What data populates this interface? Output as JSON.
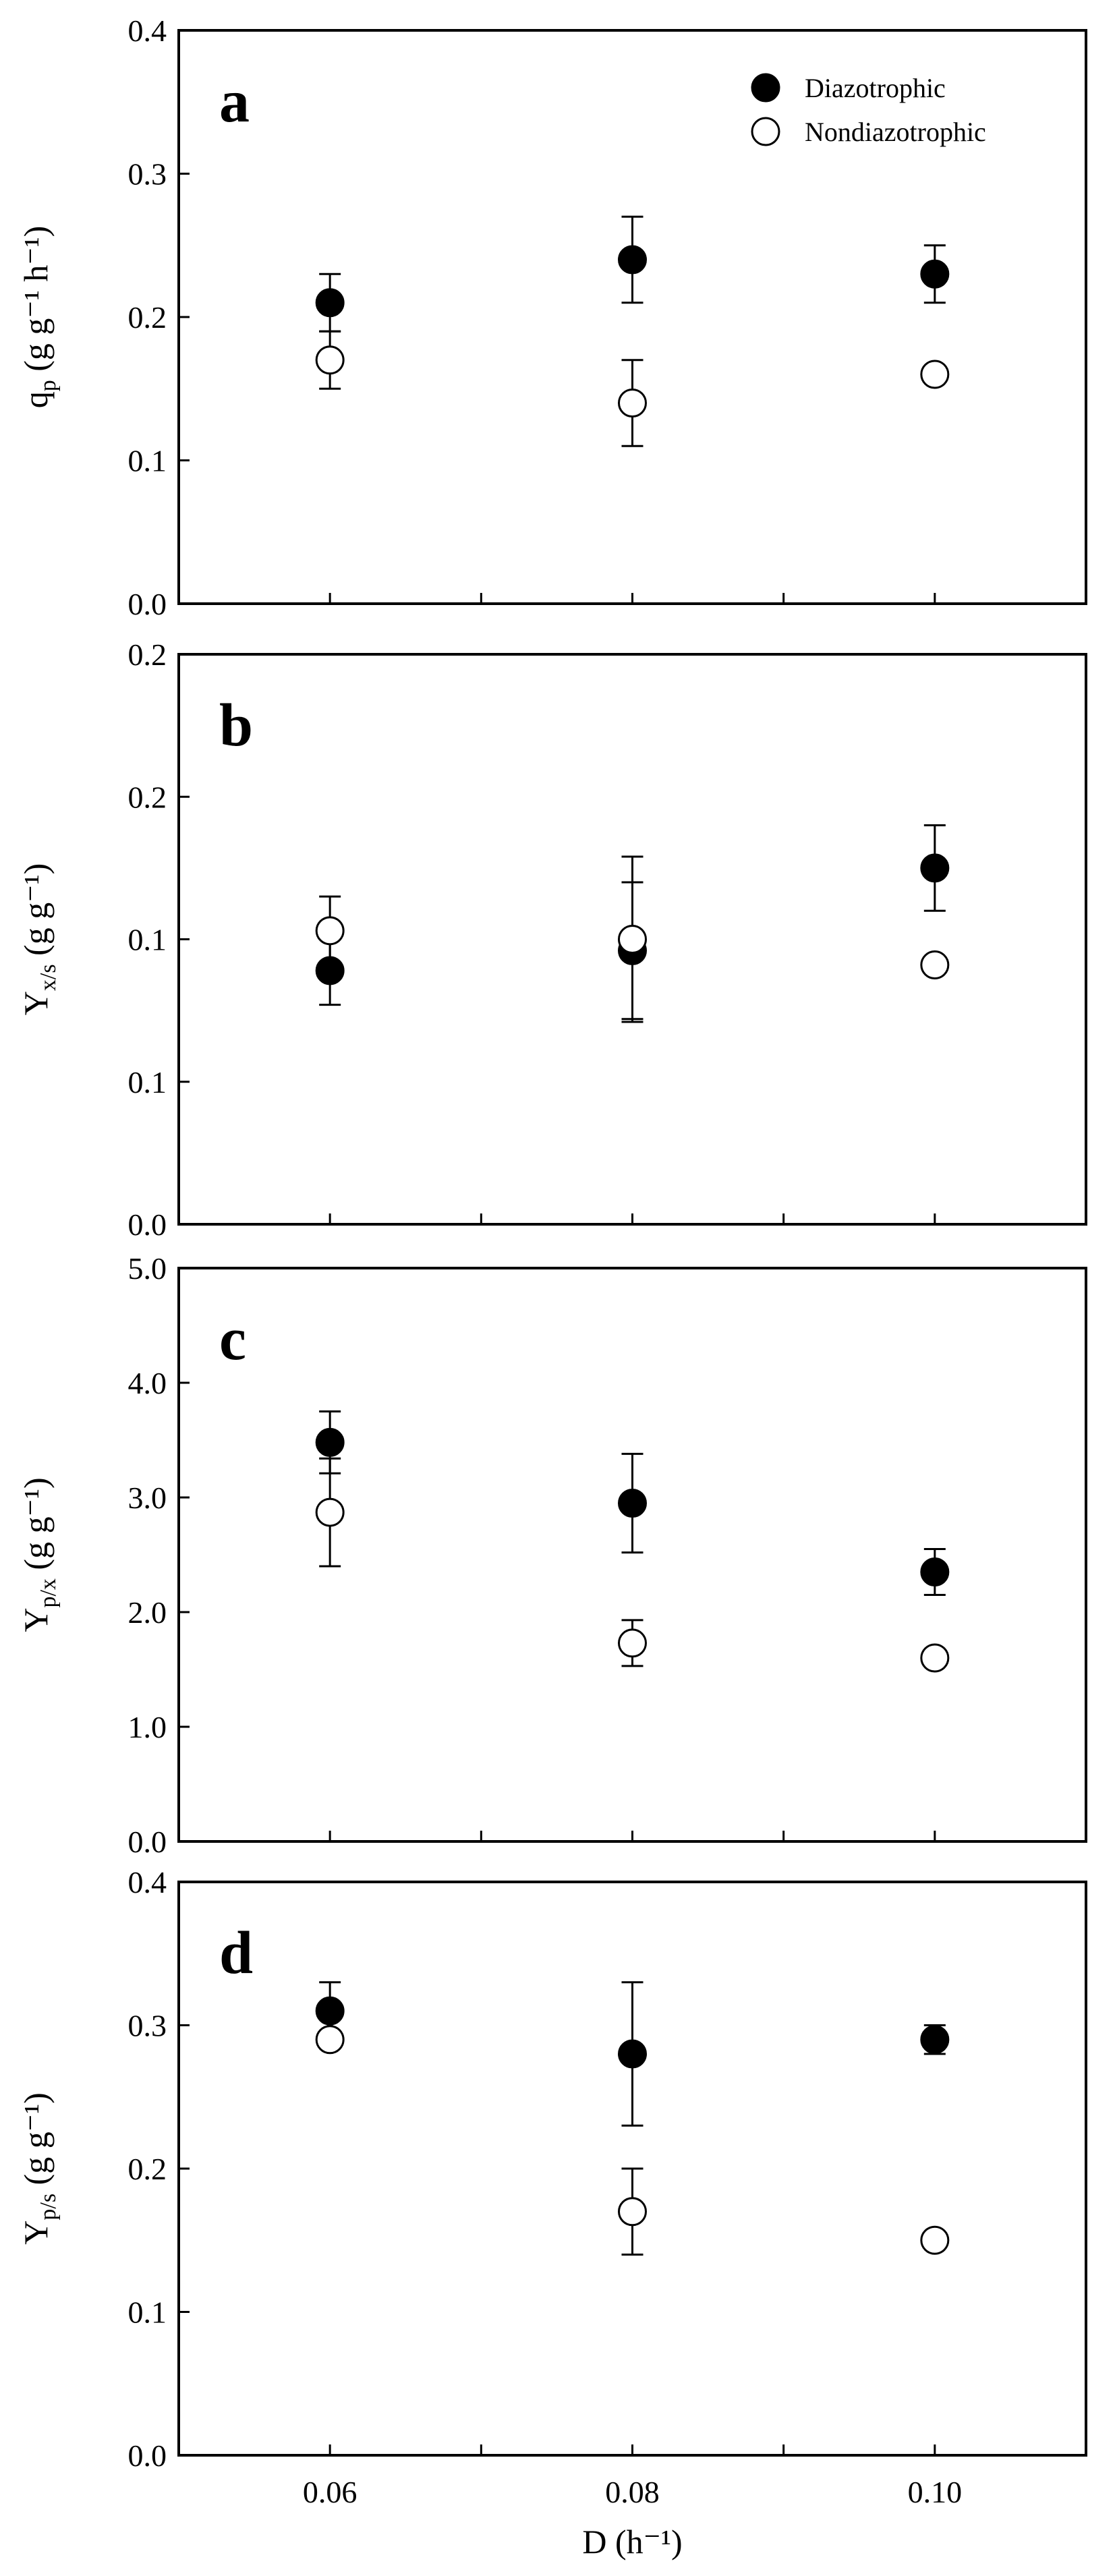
{
  "legend": {
    "diazotrophic_label": "Diazotrophic",
    "nondiazotrophic_label": "Nondiazotrophic"
  },
  "x_axis": {
    "label": "D (h⁻¹)",
    "tick_labels": [
      "0.06",
      "0.08",
      "0.10"
    ],
    "ticks": [
      0.06,
      0.07,
      0.08,
      0.09,
      0.1
    ],
    "range": [
      0.05,
      0.11
    ]
  },
  "chart_data": [
    {
      "type": "scatter",
      "panel_letter": "a",
      "ylabel_main": "q",
      "ylabel_sub": "p",
      "ylabel_rest": " (g g⁻¹ h⁻¹)",
      "ylim": [
        0,
        0.4
      ],
      "y_ticks": [
        0,
        0.1,
        0.2,
        0.3,
        0.4
      ],
      "y_tick_labels": [
        "0.0",
        "0.1",
        "0.2",
        "0.3",
        "0.4"
      ],
      "show_legend": true,
      "x": [
        0.06,
        0.08,
        0.1
      ],
      "series": [
        {
          "name": "Diazotrophic",
          "marker": "filled",
          "values": [
            0.21,
            0.24,
            0.23
          ],
          "errors": [
            0.02,
            0.03,
            0.02
          ]
        },
        {
          "name": "Nondiazotrophic",
          "marker": "open",
          "values": [
            0.17,
            0.14,
            0.16
          ],
          "errors": [
            0.02,
            0.03,
            0
          ]
        }
      ]
    },
    {
      "type": "scatter",
      "panel_letter": "b",
      "ylabel_main": "Y",
      "ylabel_sub": "x/s",
      "ylabel_rest": " (g g⁻¹)",
      "ylim": [
        0,
        0.2
      ],
      "y_ticks": [
        0,
        0.05,
        0.1,
        0.15,
        0.2
      ],
      "y_tick_labels": [
        "0.0",
        "0.1",
        "0.1",
        "0.2",
        "0.2"
      ],
      "show_legend": false,
      "x": [
        0.06,
        0.08,
        0.1
      ],
      "series": [
        {
          "name": "Diazotrophic",
          "marker": "filled",
          "values": [
            0.089,
            0.096,
            0.125
          ],
          "errors": [
            0.012,
            0.024,
            0.015
          ]
        },
        {
          "name": "Nondiazotrophic",
          "marker": "open",
          "values": [
            0.103,
            0.1,
            0.091
          ],
          "errors": [
            0.012,
            0.029,
            0
          ]
        }
      ]
    },
    {
      "type": "scatter",
      "panel_letter": "c",
      "ylabel_main": "Y",
      "ylabel_sub": "p/x",
      "ylabel_rest": " (g g⁻¹)",
      "ylim": [
        0,
        5
      ],
      "y_ticks": [
        0,
        1,
        2,
        3,
        4,
        5
      ],
      "y_tick_labels": [
        "0.0",
        "1.0",
        "2.0",
        "3.0",
        "4.0",
        "5.0"
      ],
      "show_legend": false,
      "x": [
        0.06,
        0.08,
        0.1
      ],
      "series": [
        {
          "name": "Diazotrophic",
          "marker": "filled",
          "values": [
            3.48,
            2.95,
            2.35
          ],
          "errors": [
            0.27,
            0.43,
            0.2
          ]
        },
        {
          "name": "Nondiazotrophic",
          "marker": "open",
          "values": [
            2.87,
            1.73,
            1.6
          ],
          "errors": [
            0.47,
            0.2,
            0
          ]
        }
      ]
    },
    {
      "type": "scatter",
      "panel_letter": "d",
      "ylabel_main": "Y",
      "ylabel_sub": "p/s",
      "ylabel_rest": " (g g⁻¹)",
      "ylim": [
        0,
        0.4
      ],
      "y_ticks": [
        0,
        0.1,
        0.2,
        0.3,
        0.4
      ],
      "y_tick_labels": [
        "0.0",
        "0.1",
        "0.2",
        "0.3",
        "0.4"
      ],
      "show_legend": false,
      "x": [
        0.06,
        0.08,
        0.1
      ],
      "series": [
        {
          "name": "Diazotrophic",
          "marker": "filled",
          "values": [
            0.31,
            0.28,
            0.29
          ],
          "errors": [
            0.02,
            0.05,
            0.01
          ]
        },
        {
          "name": "Nondiazotrophic",
          "marker": "open",
          "values": [
            0.29,
            0.17,
            0.15
          ],
          "errors": [
            0,
            0.03,
            0
          ]
        }
      ]
    }
  ]
}
